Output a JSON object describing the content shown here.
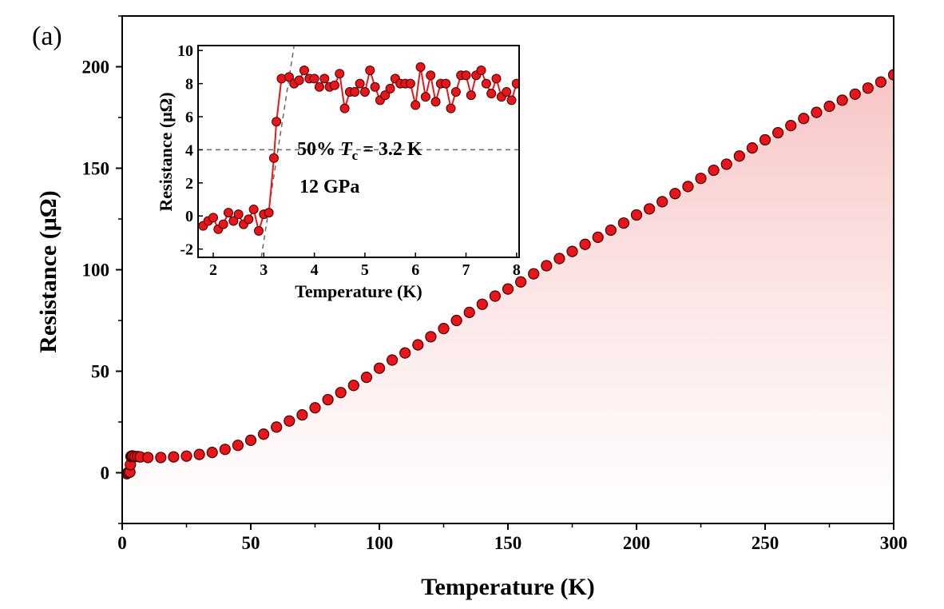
{
  "panel_label": "(a)",
  "chart_data": [
    {
      "type": "scatter",
      "role": "main",
      "xlabel": "Temperature (K)",
      "ylabel": "Resistance (μΩ)",
      "xlim": [
        0,
        300
      ],
      "ylim": [
        -25,
        225
      ],
      "xticks": [
        0,
        50,
        100,
        150,
        200,
        250,
        300
      ],
      "yticks": [
        0,
        50,
        100,
        150,
        200
      ],
      "marker_color": "#e8161b",
      "marker_edge": "#400000",
      "fill_color": "#f8c9c9",
      "shaded_area_under_curve": true,
      "series": [
        {
          "x": [
            1.8,
            2.2,
            2.6,
            3.0,
            3.2,
            3.4,
            3.8,
            4.2,
            5,
            6,
            7,
            10,
            15,
            20,
            25,
            30,
            35,
            40,
            45,
            50,
            55,
            60,
            65,
            70,
            75,
            80,
            85,
            90,
            95,
            100,
            105,
            110,
            115,
            120,
            125,
            130,
            135,
            140,
            145,
            150,
            155,
            160,
            165,
            170,
            175,
            180,
            185,
            190,
            195,
            200,
            205,
            210,
            215,
            220,
            225,
            230,
            235,
            240,
            245,
            250,
            255,
            260,
            265,
            270,
            275,
            280,
            285,
            290,
            295,
            300
          ],
          "y": [
            -0.5,
            0,
            0.2,
            0.3,
            4,
            8,
            8.3,
            8.2,
            8,
            8,
            7.8,
            7.5,
            7.5,
            7.8,
            8.2,
            9,
            10,
            11.5,
            13.5,
            16,
            19,
            22.5,
            25.5,
            28.5,
            32,
            36,
            39.5,
            43,
            47,
            51.5,
            55.5,
            59,
            63,
            67,
            71,
            75,
            79,
            83,
            87,
            90.5,
            94,
            98,
            102,
            105.5,
            109,
            112.5,
            116,
            119.5,
            123,
            127,
            130,
            133.5,
            137.5,
            141,
            145,
            149,
            152,
            156,
            160,
            164,
            167.5,
            171,
            174.5,
            177.5,
            180.5,
            183.5,
            186.5,
            189.5,
            192.5,
            196
          ]
        }
      ]
    },
    {
      "type": "line",
      "role": "inset",
      "xlabel": "Temperature (K)",
      "ylabel": "Resistance (μΩ)",
      "xlim": [
        1.7,
        8.05
      ],
      "ylim": [
        -2.5,
        10.3
      ],
      "xticks": [
        2,
        3,
        4,
        5,
        6,
        7,
        8
      ],
      "yticks": [
        -2,
        0,
        2,
        4,
        6,
        8,
        10
      ],
      "marker_color": "#e8161b",
      "line_color": "#e8161b",
      "dashed_guides": {
        "horizontal_y": 4,
        "vertical_line_through": [
          [
            2.95,
            -2.5
          ],
          [
            3.6,
            10.3
          ]
        ]
      },
      "annotations": {
        "tc_prefix": "50% ",
        "tc_symbol": "T",
        "tc_sub": "c",
        "tc_value": " = 3.2 K",
        "pressure": "12 GPa"
      },
      "series": [
        {
          "x": [
            1.8,
            1.9,
            2.0,
            2.1,
            2.2,
            2.3,
            2.4,
            2.5,
            2.6,
            2.7,
            2.8,
            2.9,
            3.0,
            3.1,
            3.2,
            3.25,
            3.35,
            3.5,
            3.6,
            3.7,
            3.8,
            3.9,
            4.0,
            4.1,
            4.2,
            4.3,
            4.4,
            4.5,
            4.6,
            4.7,
            4.8,
            4.9,
            5.0,
            5.1,
            5.2,
            5.3,
            5.4,
            5.5,
            5.6,
            5.7,
            5.8,
            5.9,
            6.0,
            6.1,
            6.2,
            6.3,
            6.4,
            6.5,
            6.6,
            6.7,
            6.8,
            6.9,
            7.0,
            7.1,
            7.2,
            7.3,
            7.4,
            7.5,
            7.6,
            7.7,
            7.8,
            7.9,
            8.0
          ],
          "y": [
            -0.6,
            -0.3,
            -0.1,
            -0.8,
            -0.5,
            0.2,
            -0.3,
            0.1,
            -0.5,
            -0.2,
            0.4,
            -0.9,
            0.1,
            0.2,
            3.5,
            5.7,
            8.3,
            8.4,
            8.0,
            8.2,
            8.8,
            8.3,
            8.3,
            7.8,
            8.3,
            7.8,
            7.9,
            8.6,
            6.5,
            7.5,
            7.5,
            8.0,
            7.5,
            8.8,
            7.8,
            7.0,
            7.3,
            7.7,
            8.3,
            8.0,
            8.0,
            8.0,
            6.7,
            9.0,
            7.2,
            8.5,
            6.9,
            8.0,
            8.0,
            6.5,
            7.5,
            8.5,
            8.5,
            7.3,
            8.5,
            8.8,
            8.0,
            7.4,
            8.3,
            7.2,
            7.5,
            7.0,
            8.0
          ]
        }
      ]
    }
  ]
}
